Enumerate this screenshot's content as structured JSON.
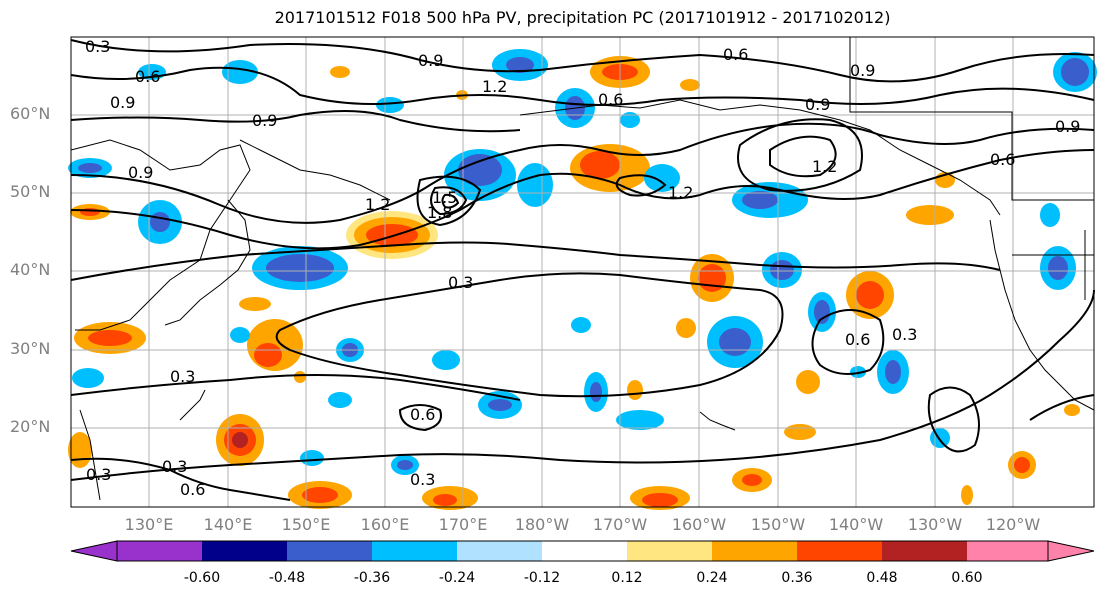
{
  "title": "2017101512 F018 500 hPa PV, precipitation PC (2017101912 - 2017102012)",
  "lat_labels": [
    "60°N",
    "50°N",
    "40°N",
    "30°N",
    "20°N"
  ],
  "lon_labels": [
    "130°E",
    "140°E",
    "150°E",
    "160°E",
    "170°E",
    "180°W",
    "170°W",
    "160°W",
    "150°W",
    "140°W",
    "130°W",
    "120°W"
  ],
  "contour_labels": [
    "0.3",
    "0.6",
    "0.9",
    "1.2",
    "1.5",
    "1.8",
    "0.9",
    "0.6",
    "0.9",
    "1.2",
    "0.9",
    "0.6",
    "0.9",
    "1.2",
    "0.9",
    "0.3",
    "0.6",
    "0.3",
    "0.6",
    "0.3",
    "0.3",
    "0.3",
    "0.6",
    "0.3",
    "0.6",
    "0.9",
    "1.2"
  ],
  "colorbar": {
    "ticks": [
      "-0.60",
      "-0.48",
      "-0.36",
      "-0.24",
      "-0.12",
      "0.12",
      "0.24",
      "0.36",
      "0.48",
      "0.60"
    ],
    "colors": [
      "#9932cc",
      "#00008b",
      "#3a5fcd",
      "#00bfff",
      "#b0e2ff",
      "#ffffff",
      "#ffe680",
      "#ffa500",
      "#ff4500",
      "#b22222",
      "#ff82ab"
    ]
  }
}
